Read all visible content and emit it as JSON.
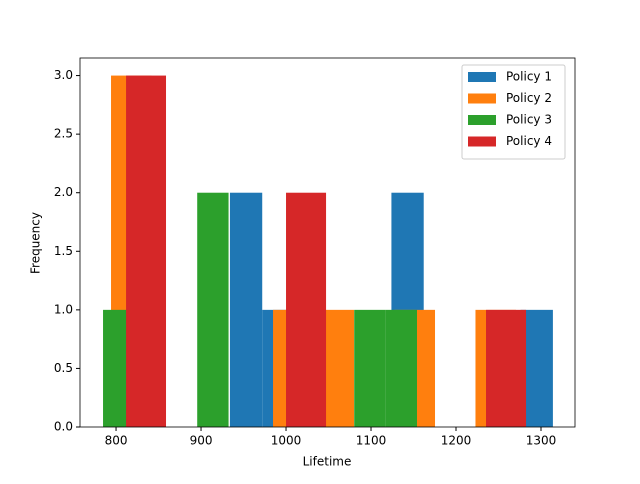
{
  "chart_data": {
    "type": "histogram",
    "xlabel": "Lifetime",
    "ylabel": "Frequency",
    "series": [
      {
        "name": "Policy 1",
        "color": "#1f77b4",
        "bins": [
          934,
          972,
          1010,
          1048,
          1086,
          1124,
          1162,
          1200,
          1238,
          1276,
          1314
        ],
        "values": [
          2,
          1,
          0,
          0,
          0,
          2,
          0,
          0,
          0,
          1
        ]
      },
      {
        "name": "Policy 2",
        "color": "#ff7f0e",
        "bins": [
          794.1,
          841.8,
          889.4,
          937.1,
          984.7,
          1032.4,
          1080,
          1127.6,
          1175.3,
          1222.9,
          1270.6
        ],
        "values": [
          3,
          0,
          0,
          0,
          1,
          1,
          0,
          1,
          0,
          1
        ]
      },
      {
        "name": "Policy 3",
        "color": "#2ca02c",
        "bins": [
          784.7,
          821.6,
          858.6,
          895.5,
          932.4,
          969.4,
          1006.3,
          1043.3,
          1080.2,
          1117.2,
          1154.1
        ],
        "values": [
          1,
          0,
          0,
          2,
          0,
          0,
          0,
          0,
          1,
          1
        ]
      },
      {
        "name": "Policy 4",
        "color": "#d62728",
        "bins": [
          811.8,
          858.8,
          905.9,
          953,
          1000,
          1047.1,
          1094.1,
          1141.2,
          1188.2,
          1235.3,
          1282.4
        ],
        "values": [
          3,
          0,
          0,
          0,
          2,
          0,
          0,
          0,
          0,
          1
        ]
      }
    ],
    "xlim": [
      757.6,
      1340
    ],
    "xticks": [
      800,
      900,
      1000,
      1100,
      1200,
      1300
    ],
    "ylim": [
      0,
      3.15
    ],
    "yticks": [
      {
        "value": 0,
        "label": "0.0"
      },
      {
        "value": 0.5,
        "label": "0.5"
      },
      {
        "value": 1,
        "label": "1.0"
      },
      {
        "value": 1.5,
        "label": "1.5"
      },
      {
        "value": 2,
        "label": "2.0"
      },
      {
        "value": 2.5,
        "label": "2.5"
      },
      {
        "value": 3,
        "label": "3.0"
      }
    ],
    "legend": "upper right"
  }
}
